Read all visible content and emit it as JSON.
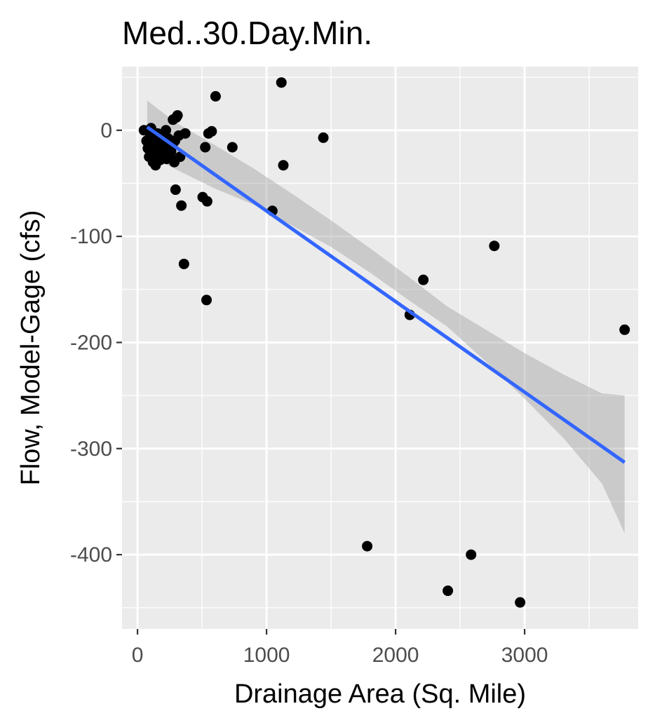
{
  "chart_data": {
    "type": "scatter",
    "title": "Med..30.Day.Min.",
    "xlabel": "Drainage Area (Sq. Mile)",
    "ylabel": "Flow, Model-Gage (cfs)",
    "xlim": [
      -120,
      3880
    ],
    "ylim": [
      -470,
      60
    ],
    "xticks": [
      0,
      1000,
      2000,
      3000
    ],
    "xminor": [
      500,
      1500,
      2500,
      3500
    ],
    "yticks": [
      0,
      -100,
      -200,
      -300,
      -400
    ],
    "yminor": [
      50,
      -50,
      -150,
      -250,
      -350,
      -450
    ],
    "grid": true,
    "colors": {
      "points": "#000000",
      "line": "#3366ff",
      "band": "#999999",
      "panel": "#ebebeb",
      "grid": "#ffffff"
    },
    "points": [
      [
        50,
        0
      ],
      [
        70,
        -10
      ],
      [
        80,
        -17
      ],
      [
        90,
        -25
      ],
      [
        100,
        -5
      ],
      [
        105,
        2
      ],
      [
        110,
        -20
      ],
      [
        120,
        -30
      ],
      [
        125,
        -12
      ],
      [
        130,
        -8
      ],
      [
        140,
        -33
      ],
      [
        150,
        -18
      ],
      [
        155,
        -3
      ],
      [
        160,
        -25
      ],
      [
        170,
        -15
      ],
      [
        175,
        -28
      ],
      [
        180,
        -10
      ],
      [
        190,
        -20
      ],
      [
        200,
        -5
      ],
      [
        205,
        -22
      ],
      [
        210,
        -14
      ],
      [
        220,
        0
      ],
      [
        225,
        -27
      ],
      [
        230,
        -18
      ],
      [
        240,
        -8
      ],
      [
        250,
        -24
      ],
      [
        255,
        -12
      ],
      [
        260,
        -20
      ],
      [
        270,
        -15
      ],
      [
        275,
        10
      ],
      [
        285,
        -30
      ],
      [
        290,
        -10
      ],
      [
        295,
        -56
      ],
      [
        300,
        12
      ],
      [
        310,
        14
      ],
      [
        320,
        -5
      ],
      [
        330,
        -25
      ],
      [
        340,
        -71
      ],
      [
        360,
        -126
      ],
      [
        370,
        -3
      ],
      [
        505,
        -63
      ],
      [
        525,
        -16
      ],
      [
        535,
        -160
      ],
      [
        540,
        -67
      ],
      [
        550,
        -3
      ],
      [
        575,
        -1
      ],
      [
        605,
        32
      ],
      [
        735,
        -16
      ],
      [
        1045,
        -76
      ],
      [
        1115,
        45
      ],
      [
        1130,
        -33
      ],
      [
        1440,
        -7
      ],
      [
        1780,
        -392
      ],
      [
        2110,
        -174
      ],
      [
        2215,
        -141
      ],
      [
        2405,
        -434
      ],
      [
        2585,
        -400
      ],
      [
        2765,
        -109
      ],
      [
        2965,
        -445
      ],
      [
        3775,
        -188
      ]
    ],
    "trend": {
      "x": [
        75,
        3775
      ],
      "y": [
        3,
        -313
      ]
    },
    "band": {
      "x": [
        75,
        300,
        600,
        900,
        1200,
        1500,
        1800,
        2100,
        2400,
        2700,
        3000,
        3300,
        3600,
        3775
      ],
      "upper": [
        28,
        7,
        -14,
        -36,
        -60,
        -85,
        -111,
        -138,
        -166,
        -188,
        -210,
        -230,
        -248,
        -250
      ],
      "lower": [
        -23,
        -37,
        -55,
        -70,
        -90,
        -110,
        -134,
        -160,
        -185,
        -218,
        -253,
        -290,
        -333,
        -380
      ]
    }
  }
}
